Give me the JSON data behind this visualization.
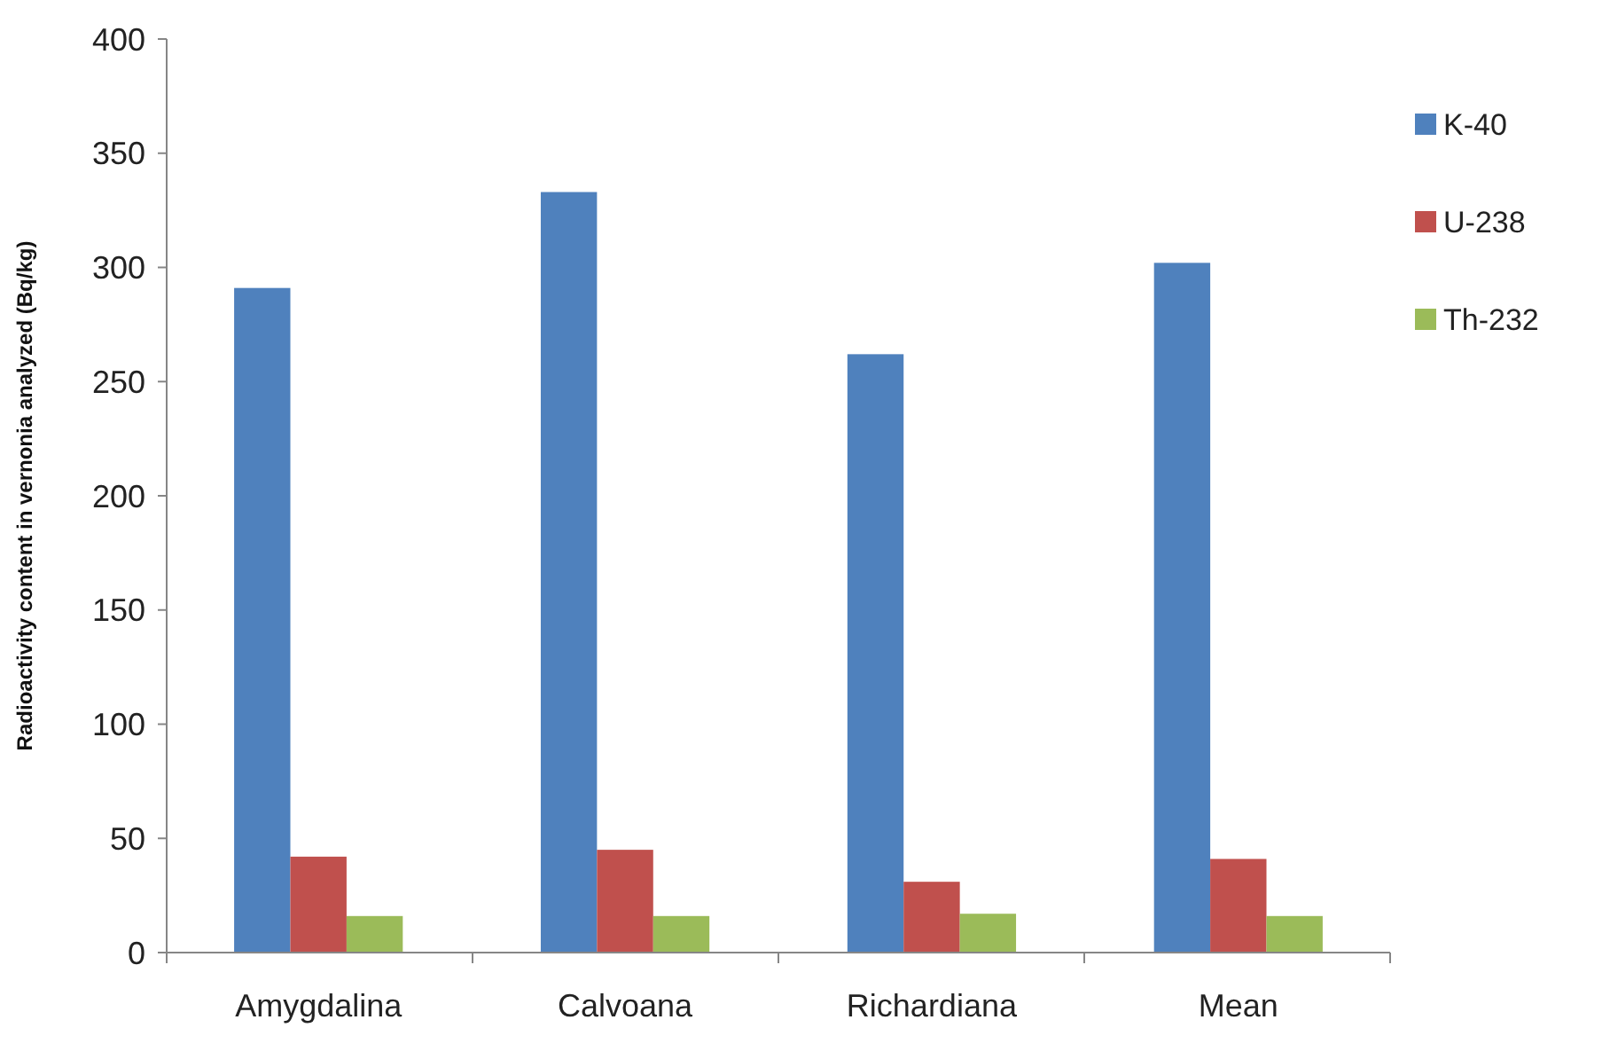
{
  "chart_data": {
    "type": "bar",
    "ylabel": "Radioactivity content in vernonia analyzed  (Bq/kg)",
    "categories": [
      "Amygdalina",
      "Calvoana",
      "Richardiana",
      "Mean"
    ],
    "series": [
      {
        "name": "K-40",
        "color": "#4f81bd",
        "values": [
          291,
          333,
          262,
          302
        ]
      },
      {
        "name": "U-238",
        "color": "#c0504d",
        "values": [
          42,
          45,
          31,
          41
        ]
      },
      {
        "name": "Th-232",
        "color": "#9bbb59",
        "values": [
          16,
          16,
          17,
          16
        ]
      }
    ],
    "ylim": [
      0,
      400
    ],
    "yticks": [
      0,
      50,
      100,
      150,
      200,
      250,
      300,
      350,
      400
    ],
    "grid": false,
    "legend": "right"
  }
}
